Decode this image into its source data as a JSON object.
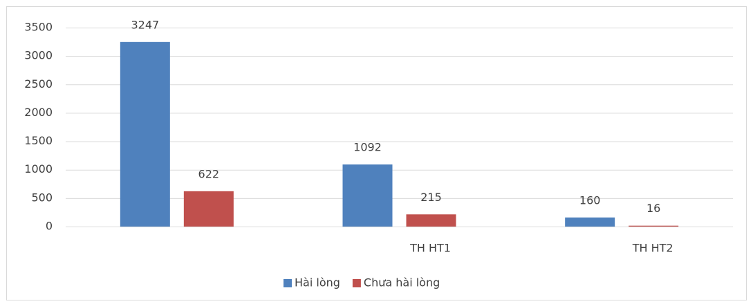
{
  "chart_data": {
    "type": "bar",
    "categories": [
      null,
      "TH HT1",
      "TH HT2"
    ],
    "series": [
      {
        "name": "Hài lòng",
        "color": "#4f81bd",
        "values": [
          3247,
          1092,
          160
        ]
      },
      {
        "name": "Chưa hài lòng",
        "color": "#c0504d",
        "values": [
          622,
          215,
          16
        ]
      }
    ],
    "ylim": [
      0,
      3500
    ],
    "yticks": [
      0,
      500,
      1000,
      1500,
      2000,
      2500,
      3000,
      3500
    ],
    "grid": true,
    "legend": "bottom"
  }
}
